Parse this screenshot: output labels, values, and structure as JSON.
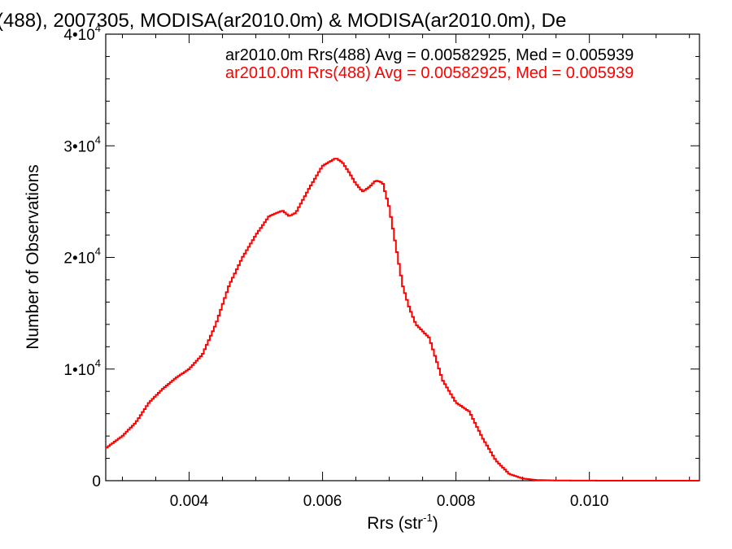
{
  "chart_data": {
    "type": "line",
    "title": "(488), 2007305, MODISA(ar2010.0m) & MODISA(ar2010.0m), De",
    "xlabel": "Rrs (str",
    "xlabel_sup": "-1",
    "xlabel_close": ")",
    "ylabel": "Number of Observations",
    "xlim": [
      0.00275,
      0.01165
    ],
    "ylim": [
      0,
      40000
    ],
    "xticks": [
      {
        "value": 0.004,
        "label": "0.004"
      },
      {
        "value": 0.006,
        "label": "0.006"
      },
      {
        "value": 0.008,
        "label": "0.008"
      },
      {
        "value": 0.01,
        "label": "0.010"
      }
    ],
    "yticks": [
      {
        "value": 0,
        "mant": "0",
        "exp": ""
      },
      {
        "value": 10000,
        "mant": "1•10",
        "exp": "4"
      },
      {
        "value": 20000,
        "mant": "2•10",
        "exp": "4"
      },
      {
        "value": 30000,
        "mant": "3•10",
        "exp": "4"
      },
      {
        "value": 40000,
        "mant": "4•10",
        "exp": "4"
      }
    ],
    "legend": [
      {
        "text": "ar2010.0m Rrs(488) Avg = 0.00582925, Med = 0.005939",
        "color": "#000000"
      },
      {
        "text": "ar2010.0m Rrs(488) Avg = 0.00582925, Med = 0.005939",
        "color": "#ff0000"
      }
    ],
    "series": [
      {
        "color": "#ff0000",
        "step": true,
        "points": [
          [
            0.00275,
            2900
          ],
          [
            0.003,
            4000
          ],
          [
            0.0032,
            5200
          ],
          [
            0.0034,
            7000
          ],
          [
            0.0036,
            8200
          ],
          [
            0.0038,
            9200
          ],
          [
            0.004,
            10000
          ],
          [
            0.0042,
            11300
          ],
          [
            0.0044,
            14000
          ],
          [
            0.0046,
            17500
          ],
          [
            0.0048,
            20000
          ],
          [
            0.005,
            22000
          ],
          [
            0.0052,
            23700
          ],
          [
            0.0054,
            24200
          ],
          [
            0.0055,
            23700
          ],
          [
            0.0056,
            24000
          ],
          [
            0.0058,
            26200
          ],
          [
            0.006,
            28200
          ],
          [
            0.0062,
            28900
          ],
          [
            0.0063,
            28500
          ],
          [
            0.0064,
            27600
          ],
          [
            0.0065,
            26600
          ],
          [
            0.0066,
            25900
          ],
          [
            0.0067,
            26300
          ],
          [
            0.0068,
            26900
          ],
          [
            0.0069,
            26700
          ],
          [
            0.007,
            24500
          ],
          [
            0.0071,
            21000
          ],
          [
            0.0072,
            17500
          ],
          [
            0.0073,
            15500
          ],
          [
            0.0074,
            14000
          ],
          [
            0.0076,
            12800
          ],
          [
            0.0078,
            9000
          ],
          [
            0.008,
            7000
          ],
          [
            0.0082,
            6200
          ],
          [
            0.0084,
            3800
          ],
          [
            0.0086,
            1800
          ],
          [
            0.0088,
            600
          ],
          [
            0.009,
            200
          ],
          [
            0.0092,
            60
          ],
          [
            0.0095,
            20
          ],
          [
            0.01,
            5
          ],
          [
            0.01165,
            0
          ]
        ]
      }
    ]
  }
}
